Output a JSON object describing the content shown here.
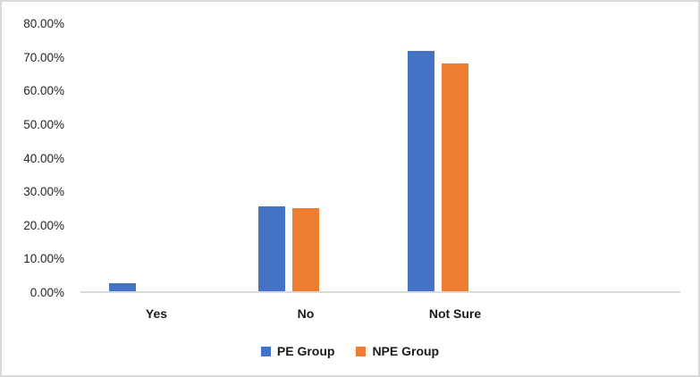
{
  "chart_data": {
    "type": "bar",
    "title": "",
    "categories": [
      "Yes",
      "No",
      "Not Sure"
    ],
    "series": [
      {
        "name": "PE Group",
        "color": "#4472C4",
        "values": [
          2.6,
          25.6,
          71.8
        ]
      },
      {
        "name": "NPE Group",
        "color": "#ED7D31",
        "values": [
          0,
          25,
          68
        ]
      }
    ],
    "ylim": [
      0,
      80
    ],
    "ytick_step": 10,
    "ytick_labels": [
      "0.00%",
      "10.00%",
      "20.00%",
      "30.00%",
      "40.00%",
      "50.00%",
      "60.00%",
      "70.00%",
      "80.00%"
    ],
    "grid": false,
    "legend_position": "bottom",
    "colors": {
      "axis_line": "#D9D9D9",
      "tick_label": "#262626",
      "category_label": "#1A1A1A",
      "background": "#FFFFFF",
      "frame_border": "#D9D9D9"
    }
  }
}
